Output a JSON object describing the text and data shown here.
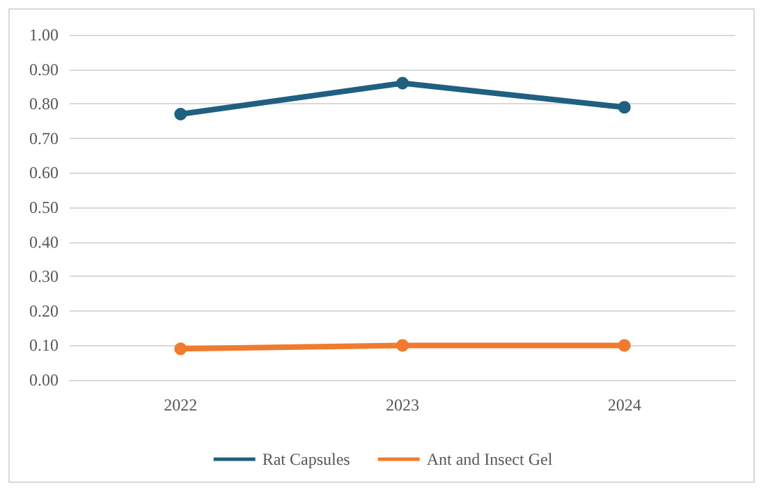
{
  "chart_data": {
    "type": "line",
    "categories": [
      "2022",
      "2023",
      "2024"
    ],
    "series": [
      {
        "name": "Rat Capsules",
        "color": "#1f5f7f",
        "values": [
          0.77,
          0.86,
          0.79
        ]
      },
      {
        "name": "Ant and Insect Gel",
        "color": "#f07a2e",
        "values": [
          0.09,
          0.1,
          0.1
        ]
      }
    ],
    "ylim": [
      0,
      1
    ],
    "yticks": [
      {
        "value": 0,
        "label": "0.00"
      },
      {
        "value": 0.1,
        "label": "0.10"
      },
      {
        "value": 0.2,
        "label": "0.20"
      },
      {
        "value": 0.3,
        "label": "0.30"
      },
      {
        "value": 0.4,
        "label": "0.40"
      },
      {
        "value": 0.5,
        "label": "0.50"
      },
      {
        "value": 0.6,
        "label": "0.60"
      },
      {
        "value": 0.7,
        "label": "0.70"
      },
      {
        "value": 0.8,
        "label": "0.80"
      },
      {
        "value": 0.9,
        "label": "0.90"
      },
      {
        "value": 1,
        "label": "1.00"
      }
    ],
    "grid": "y",
    "legend": "bottom",
    "marker": "circle",
    "line_style": "solid"
  }
}
